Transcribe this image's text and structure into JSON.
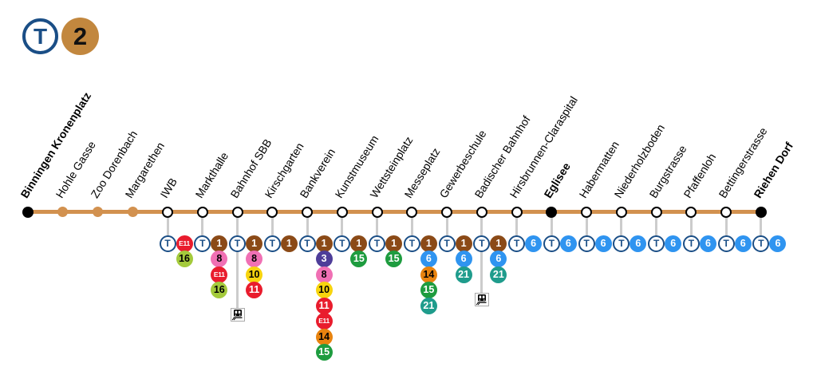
{
  "header": {
    "transport_symbol": "T",
    "line_number": "2"
  },
  "diagram": {
    "type": "transit-line",
    "line_color": "#d2914f",
    "header_badge_color": "#c2873e",
    "t_symbol_color": "#1a4e86",
    "connector_color": "#cccccc"
  },
  "badge_styles": {
    "T": {
      "bg": "#ffffff",
      "fg": "#1a4e86",
      "border": "#1a4e86"
    },
    "1": {
      "bg": "#8b4a17",
      "fg": "#ffffff"
    },
    "3": {
      "bg": "#4e3d99",
      "fg": "#ffffff"
    },
    "6": {
      "bg": "#2f94f0",
      "fg": "#ffffff"
    },
    "8": {
      "bg": "#f070b4",
      "fg": "#000000"
    },
    "10": {
      "bg": "#f7d40e",
      "fg": "#000000"
    },
    "11": {
      "bg": "#e91c2d",
      "fg": "#ffffff"
    },
    "E11": {
      "bg": "#e91c2d",
      "fg": "#ffffff"
    },
    "14": {
      "bg": "#e8830f",
      "fg": "#000000"
    },
    "15": {
      "bg": "#1e9c3f",
      "fg": "#ffffff"
    },
    "16": {
      "bg": "#a4ca3c",
      "fg": "#000000"
    },
    "21": {
      "bg": "#1f9c8c",
      "fg": "#ffffff"
    }
  },
  "stations": [
    {
      "name": "Binningen Kronenplatz",
      "type": "terminus",
      "bold": true,
      "connections": [],
      "rail": false
    },
    {
      "name": "Hohle Gasse",
      "type": "minor",
      "bold": false,
      "connections": [],
      "rail": false
    },
    {
      "name": "Zoo Dorenbach",
      "type": "minor",
      "bold": false,
      "connections": [],
      "rail": false
    },
    {
      "name": "Margarethen",
      "type": "minor",
      "bold": false,
      "connections": [],
      "rail": false
    },
    {
      "name": "IWB",
      "type": "major",
      "bold": false,
      "connections": [
        "E11",
        "16"
      ],
      "rail": false
    },
    {
      "name": "Markthalle",
      "type": "major",
      "bold": false,
      "connections": [
        "1",
        "8",
        "E11",
        "16"
      ],
      "rail": false
    },
    {
      "name": "Bahnhof SBB",
      "type": "major",
      "bold": false,
      "connections": [
        "1",
        "8",
        "10",
        "11"
      ],
      "rail": true
    },
    {
      "name": "Kirschgarten",
      "type": "major",
      "bold": false,
      "connections": [
        "1"
      ],
      "rail": false
    },
    {
      "name": "Bankverein",
      "type": "major",
      "bold": false,
      "connections": [
        "1",
        "3",
        "8",
        "10",
        "11",
        "E11",
        "14",
        "15"
      ],
      "rail": false
    },
    {
      "name": "Kunstmuseum",
      "type": "major",
      "bold": false,
      "connections": [
        "1",
        "15"
      ],
      "rail": false
    },
    {
      "name": "Wettsteinplatz",
      "type": "major",
      "bold": false,
      "connections": [
        "1",
        "15"
      ],
      "rail": false
    },
    {
      "name": "Messeplatz",
      "type": "major",
      "bold": false,
      "connections": [
        "1",
        "6",
        "14",
        "15",
        "21"
      ],
      "rail": false
    },
    {
      "name": "Gewerbeschule",
      "type": "major",
      "bold": false,
      "connections": [
        "1",
        "6",
        "21"
      ],
      "rail": false
    },
    {
      "name": "Badischer Bahnhof",
      "type": "major",
      "bold": false,
      "connections": [
        "1",
        "6",
        "21"
      ],
      "rail": true
    },
    {
      "name": "Hirsbrunnen-Claraspital",
      "type": "major",
      "bold": false,
      "connections": [
        "6"
      ],
      "rail": false
    },
    {
      "name": "Eglisee",
      "type": "terminus",
      "bold": true,
      "connections": [
        "6"
      ],
      "rail": false
    },
    {
      "name": "Habermatten",
      "type": "major",
      "bold": false,
      "connections": [
        "6"
      ],
      "rail": false
    },
    {
      "name": "Niederholzboden",
      "type": "major",
      "bold": false,
      "connections": [
        "6"
      ],
      "rail": false
    },
    {
      "name": "Burgstrasse",
      "type": "major",
      "bold": false,
      "connections": [
        "6"
      ],
      "rail": false
    },
    {
      "name": "Pfaffenloh",
      "type": "major",
      "bold": false,
      "connections": [
        "6"
      ],
      "rail": false
    },
    {
      "name": "Bettingerstrasse",
      "type": "major",
      "bold": false,
      "connections": [
        "6"
      ],
      "rail": false
    },
    {
      "name": "Riehen Dorf",
      "type": "terminus",
      "bold": true,
      "connections": [
        "6"
      ],
      "rail": false
    }
  ]
}
